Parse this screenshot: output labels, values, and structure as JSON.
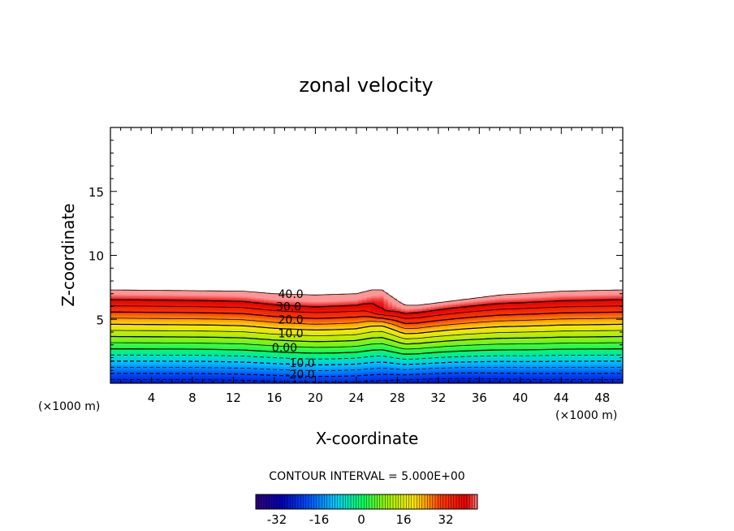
{
  "chart_data": {
    "type": "contour",
    "title": "zonal velocity",
    "xlabel": "X-coordinate",
    "ylabel": "Z-coordinate",
    "x_unit_left": "(×1000 m)",
    "x_unit_right": "(×1000 m)",
    "xlim": [
      0,
      50
    ],
    "ylim": [
      0,
      20
    ],
    "x_ticks": [
      4,
      8,
      12,
      16,
      20,
      24,
      28,
      32,
      36,
      40,
      44,
      48
    ],
    "y_ticks": [
      5,
      10,
      15
    ],
    "contour_interval_text": "CONTOUR INTERVAL = 5.000E+00",
    "contour_interval": 5.0,
    "contour_labels": [
      {
        "text": "40.0",
        "x": 17.6,
        "z": 7.0
      },
      {
        "text": "30.0",
        "x": 17.4,
        "z": 6.0
      },
      {
        "text": "20.0",
        "x": 17.6,
        "z": 5.0
      },
      {
        "text": "10.0",
        "x": 17.6,
        "z": 3.9
      },
      {
        "text": "0.00",
        "x": 17.0,
        "z": 2.8
      },
      {
        "text": "-10.0",
        "x": 18.5,
        "z": 1.6
      },
      {
        "text": "-20.0",
        "x": 18.5,
        "z": 0.7
      }
    ],
    "colorbar": {
      "min": -40,
      "max": 44,
      "tick_labels": [
        "-32",
        "-16",
        "0",
        "16",
        "32"
      ],
      "tick_values": [
        -32,
        -16,
        0,
        16,
        32
      ]
    },
    "top_boundary": [
      [
        0,
        7.3
      ],
      [
        13,
        7.2
      ],
      [
        16,
        7.0
      ],
      [
        20,
        6.9
      ],
      [
        24,
        7.0
      ],
      [
        25.5,
        7.3
      ],
      [
        26.5,
        7.3
      ],
      [
        28.3,
        6.3
      ],
      [
        28.8,
        6.1
      ],
      [
        30,
        6.1
      ],
      [
        33,
        6.4
      ],
      [
        38,
        6.9
      ],
      [
        44,
        7.2
      ],
      [
        50,
        7.3
      ]
    ],
    "jet_core": {
      "x": 26.5,
      "z": 5.6
    },
    "colors": {
      "neg40": "#30007a",
      "neg30": "#0000b4",
      "neg20": "#0050ff",
      "neg10": "#00c8ff",
      "zero": "#00ff64",
      "pos10": "#a0f000",
      "pos20": "#ffe600",
      "pos25": "#ff9600",
      "pos30": "#ff3c00",
      "pos40": "#e60000",
      "pos45": "#ff9696"
    }
  }
}
